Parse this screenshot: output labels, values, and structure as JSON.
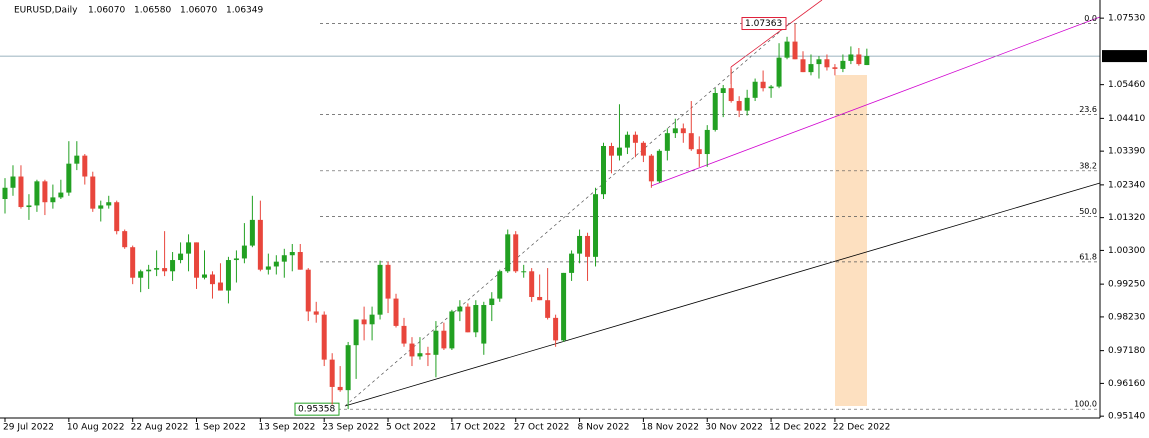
{
  "chart_data": {
    "type": "candlestick",
    "symbol": "EURUSD,Daily",
    "header_values": [
      "1.06070",
      "1.06580",
      "1.06070",
      "1.06349"
    ],
    "categories": [
      "29 Jul 2022",
      null,
      null,
      null,
      null,
      null,
      null,
      null,
      "10 Aug 2022",
      null,
      null,
      null,
      null,
      null,
      null,
      null,
      "22 Aug 2022",
      null,
      null,
      null,
      null,
      null,
      null,
      null,
      "1 Sep 2022",
      null,
      null,
      null,
      null,
      null,
      null,
      null,
      "13 Sep 2022",
      null,
      null,
      null,
      null,
      null,
      null,
      null,
      "23 Sep 2022",
      null,
      null,
      null,
      null,
      null,
      null,
      null,
      "5 Oct 2022",
      null,
      null,
      null,
      null,
      null,
      null,
      null,
      "17 Oct 2022",
      null,
      null,
      null,
      null,
      null,
      null,
      null,
      "27 Oct 2022",
      null,
      null,
      null,
      null,
      null,
      null,
      null,
      "8 Nov 2022",
      null,
      null,
      null,
      null,
      null,
      null,
      null,
      "18 Nov 2022",
      null,
      null,
      null,
      null,
      null,
      null,
      null,
      "30 Nov 2022",
      null,
      null,
      null,
      null,
      null,
      null,
      null,
      "12 Dec 2022",
      null,
      null,
      null,
      null,
      null,
      null,
      null,
      "22 Dec 2022",
      null,
      null,
      null,
      null
    ],
    "open": [
      1.019,
      1.0225,
      1.026,
      1.0165,
      1.017,
      1.0245,
      1.018,
      1.0195,
      1.021,
      1.03,
      1.0325,
      1.026,
      1.016,
      1.017,
      1.018,
      1.009,
      1.004,
      0.9945,
      0.9965,
      0.997,
      0.9975,
      0.9965,
      1.0,
      1.002,
      1.0055,
      0.9945,
      0.9955,
      0.993,
      0.9905,
      1.0,
      1.0005,
      1.0045,
      1.0125,
      0.997,
      0.998,
      0.9995,
      1.0015,
      1.0025,
      0.997,
      0.984,
      0.983,
      0.969,
      0.9605,
      0.9595,
      0.9735,
      0.9815,
      0.98,
      0.983,
      0.9985,
      0.988,
      0.9795,
      0.974,
      0.97,
      0.971,
      0.9705,
      0.978,
      0.9725,
      0.984,
      0.9855,
      0.9775,
      0.974,
      0.986,
      0.988,
      0.9965,
      1.008,
      0.9965,
      0.9965,
      0.9885,
      0.9875,
      0.982,
      0.975,
      0.996,
      1.002,
      1.0075,
      1.001,
      1.0205,
      1.0355,
      1.0325,
      1.035,
      1.039,
      1.0365,
      1.0325,
      1.0245,
      1.034,
      1.0395,
      1.041,
      1.0395,
      1.0345,
      1.033,
      1.0405,
      1.052,
      1.0535,
      1.0495,
      1.0465,
      1.0505,
      1.0555,
      1.0535,
      1.054,
      1.063,
      1.068,
      1.0625,
      1.0585,
      1.061,
      1.0625,
      1.06,
      1.0595,
      1.062,
      1.064,
      1.0607
    ],
    "high": [
      1.0255,
      1.0295,
      1.0295,
      1.0205,
      1.025,
      1.025,
      1.0235,
      1.025,
      1.037,
      1.037,
      1.033,
      1.0275,
      1.0185,
      1.02,
      1.0185,
      1.0095,
      1.0045,
      0.997,
      0.9985,
      1.003,
      1.009,
      1.0025,
      1.0055,
      1.008,
      1.0055,
      1.003,
      0.9965,
      0.999,
      1.001,
      1.003,
      1.0115,
      1.02,
      1.0185,
      1.002,
      1.0015,
      1.0035,
      1.005,
      1.005,
      0.9975,
      0.987,
      0.984,
      0.971,
      0.967,
      0.9745,
      0.9815,
      0.9855,
      0.9855,
      0.9998,
      0.9995,
      0.9895,
      0.982,
      0.976,
      0.976,
      0.973,
      0.981,
      0.9805,
      0.9845,
      0.9875,
      0.9865,
      0.9875,
      0.987,
      0.99,
      0.997,
      1.0095,
      1.009,
      0.9985,
      0.9975,
      0.9955,
      0.9975,
      0.983,
      0.996,
      1.003,
      1.0095,
      1.0085,
      1.0225,
      1.0365,
      1.0365,
      1.0485,
      1.04,
      1.04,
      1.037,
      1.033,
      1.0345,
      1.041,
      1.044,
      1.0425,
      1.0495,
      1.0385,
      1.042,
      1.0535,
      1.0545,
      1.0595,
      1.051,
      1.053,
      1.0565,
      1.059,
      1.0545,
      1.0675,
      1.0695,
      1.07363,
      1.065,
      1.064,
      1.0635,
      1.064,
      1.061,
      1.064,
      1.0665,
      1.066,
      1.0658
    ],
    "low": [
      1.0145,
      1.02,
      1.016,
      1.0125,
      1.015,
      1.014,
      1.016,
      1.019,
      1.02,
      1.028,
      1.0235,
      1.015,
      1.012,
      1.016,
      1.008,
      1.0035,
      0.9925,
      0.99,
      0.991,
      0.995,
      0.995,
      0.9935,
      0.999,
      0.9965,
      0.991,
      0.994,
      0.988,
      0.9905,
      0.9865,
      0.993,
      0.999,
      1.004,
      0.9965,
      0.9955,
      0.9955,
      0.9945,
      0.9965,
      0.997,
      0.981,
      0.9805,
      0.967,
      0.955,
      0.959,
      0.95358,
      0.963,
      0.975,
      0.975,
      0.9815,
      0.9835,
      0.979,
      0.973,
      0.967,
      0.969,
      0.967,
      0.9635,
      0.972,
      0.972,
      0.981,
      0.9775,
      0.976,
      0.9705,
      0.981,
      0.987,
      0.996,
      0.996,
      0.9945,
      0.987,
      0.9875,
      0.9815,
      0.973,
      0.9745,
      0.9935,
      0.999,
      0.9935,
      0.998,
      1.019,
      1.027,
      1.031,
      1.033,
      1.032,
      1.0305,
      1.0225,
      1.024,
      1.031,
      1.038,
      1.0365,
      1.034,
      1.029,
      1.029,
      1.04,
      1.0445,
      1.049,
      1.0445,
      1.045,
      1.0495,
      1.0525,
      1.0505,
      1.0535,
      1.0625,
      1.0625,
      1.0585,
      1.0575,
      1.0565,
      1.059,
      1.0575,
      1.0585,
      1.061,
      1.0605,
      1.0607
    ],
    "close": [
      1.0225,
      1.026,
      1.0165,
      1.017,
      1.0245,
      1.018,
      1.0195,
      1.021,
      1.03,
      1.0325,
      1.026,
      1.016,
      1.017,
      1.018,
      1.009,
      1.004,
      0.9945,
      0.9965,
      0.997,
      0.9975,
      0.9965,
      1.0,
      1.002,
      1.0055,
      0.9945,
      0.9955,
      0.9925,
      0.9905,
      1.0,
      1.0005,
      1.0045,
      1.0125,
      0.997,
      0.998,
      0.9995,
      1.0015,
      1.0025,
      0.997,
      0.984,
      0.983,
      0.969,
      0.9605,
      0.9595,
      0.9735,
      0.9815,
      0.98,
      0.983,
      0.9985,
      0.988,
      0.9795,
      0.974,
      0.97,
      0.971,
      0.9705,
      0.978,
      0.9725,
      0.984,
      0.9855,
      0.9775,
      0.986,
      0.986,
      0.988,
      0.9965,
      1.008,
      0.9965,
      0.9965,
      0.9885,
      0.9875,
      0.982,
      0.975,
      0.996,
      1.002,
      1.0075,
      1.001,
      1.0205,
      1.0355,
      1.0325,
      1.035,
      1.039,
      1.0365,
      1.0325,
      1.0245,
      1.034,
      1.0395,
      1.041,
      1.0395,
      1.0345,
      1.033,
      1.0405,
      1.052,
      1.0535,
      1.0495,
      1.0465,
      1.0505,
      1.0555,
      1.0535,
      1.054,
      1.063,
      1.068,
      1.0625,
      1.0585,
      1.061,
      1.0625,
      1.06,
      1.0595,
      1.062,
      1.064,
      1.061,
      1.06349
    ],
    "up_color": "#22a022",
    "down_color": "#e8463c",
    "ylim": [
      0.95083,
      1.08095
    ],
    "yticks": [
      {
        "value": 1.0753,
        "label": "1.07530"
      },
      {
        "value": 1.0546,
        "label": "1.05460"
      },
      {
        "value": 1.0441,
        "label": "1.04410"
      },
      {
        "value": 1.0339,
        "label": "1.03390"
      },
      {
        "value": 1.0234,
        "label": "1.02340"
      },
      {
        "value": 1.0132,
        "label": "1.01320"
      },
      {
        "value": 1.003,
        "label": "1.00300"
      },
      {
        "value": 0.9925,
        "label": "0.99250"
      },
      {
        "value": 0.9823,
        "label": "0.98230"
      },
      {
        "value": 0.9718,
        "label": "0.97180"
      },
      {
        "value": 0.9616,
        "label": "0.96160"
      },
      {
        "value": 0.9514,
        "label": "0.95140"
      }
    ],
    "fibonacci": {
      "high": 1.07363,
      "low": 0.95358,
      "levels": [
        {
          "value": 0,
          "label": "0.0"
        },
        23.6,
        38.2,
        {
          "value": 50,
          "label": "50.0"
        },
        61.8,
        {
          "value": 100,
          "label": "100.0"
        }
      ]
    }
  }
}
